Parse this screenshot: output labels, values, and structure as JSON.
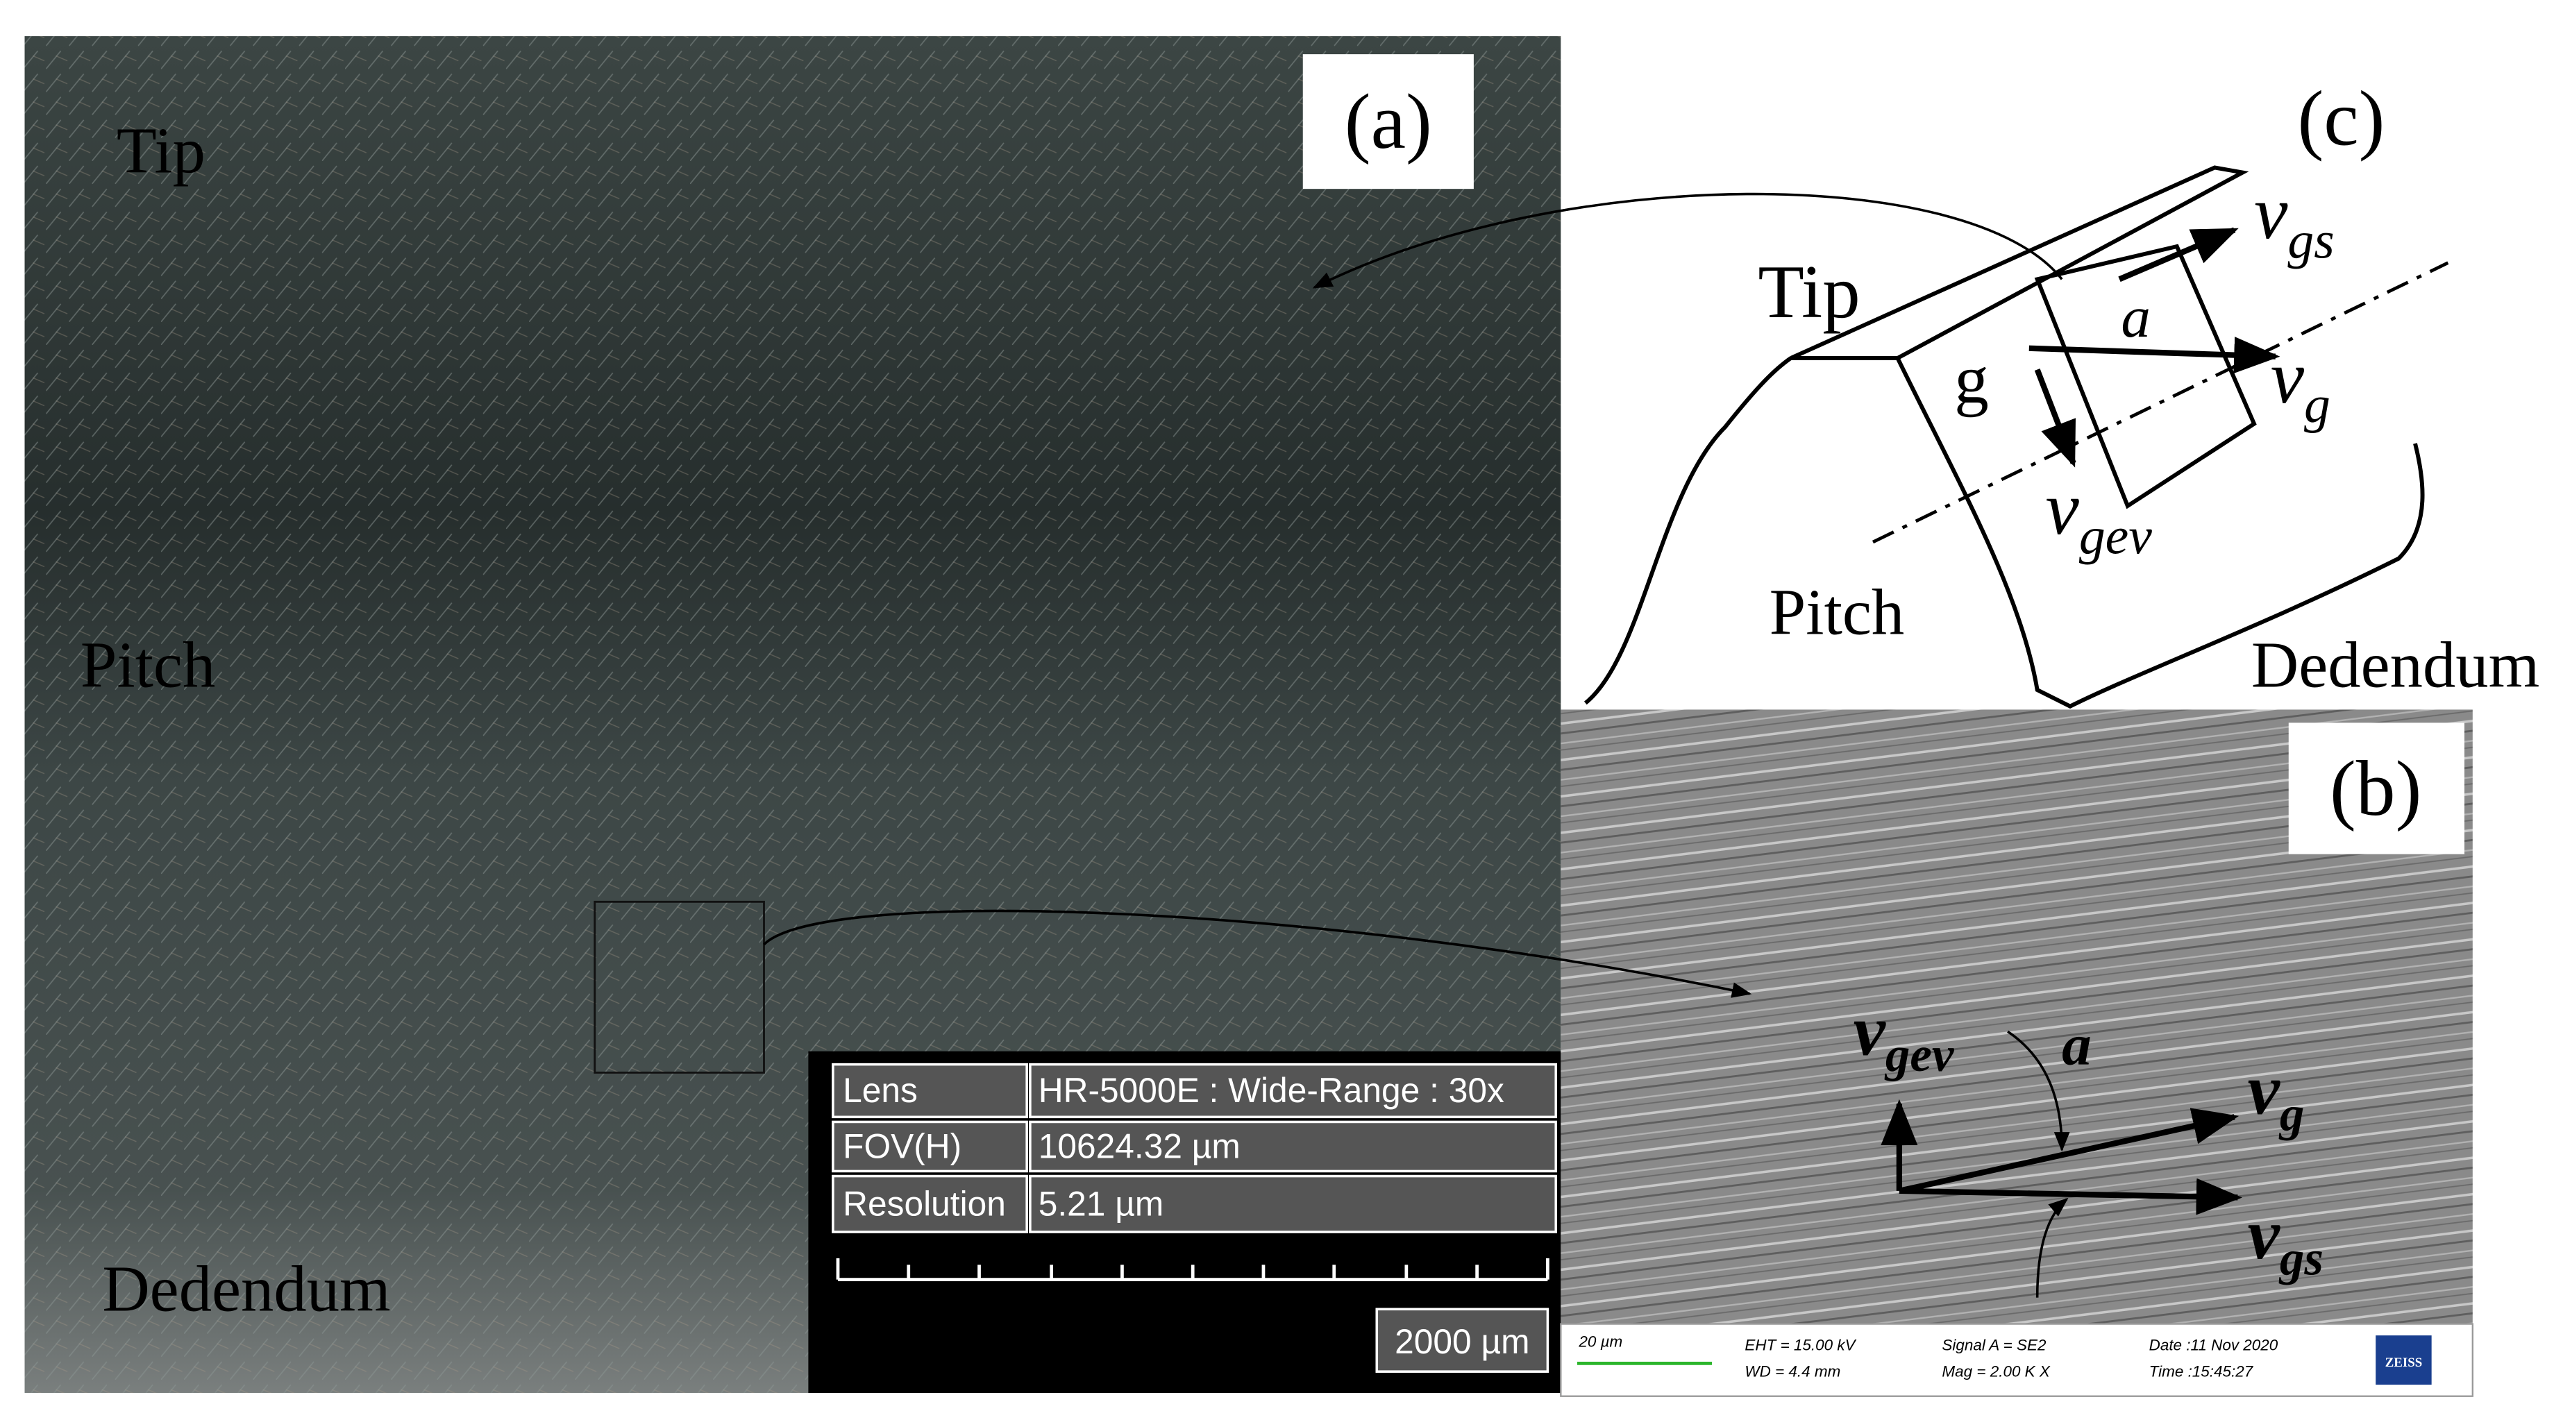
{
  "panel_a": {
    "label": "(a)",
    "regions": [
      "Tip",
      "Pitch",
      "Dedendum"
    ],
    "info_table": {
      "rows": [
        [
          "Lens",
          "HR-5000E : Wide-Range : 30x"
        ],
        [
          "FOV(H)",
          "10624.32 µm"
        ],
        [
          "Resolution",
          "5.21 µm"
        ]
      ]
    },
    "scale_bar": "2000 µm"
  },
  "panel_b": {
    "label": "(b)",
    "vectors": [
      {
        "symbol": "v",
        "subscript": "gev"
      },
      {
        "symbol": "v",
        "subscript": "g"
      },
      {
        "symbol": "v",
        "subscript": "gs"
      }
    ],
    "angle": "a",
    "footer": [
      "20 µm",
      "EHT = 15.00 kV",
      "WD = 4.4 mm",
      "Signal A = SE2",
      "Mag = 2.00 K X",
      "Date :11 Nov 2020",
      "Time :15:45:27",
      "ZEISS"
    ]
  },
  "panel_c": {
    "label": "(c)",
    "regions": [
      "Tip",
      "Pitch",
      "Dedendum"
    ],
    "direction": "g",
    "angle": "a",
    "vectors": [
      {
        "symbol": "v",
        "subscript": "gs"
      },
      {
        "symbol": "v",
        "subscript": "g"
      },
      {
        "symbol": "v",
        "subscript": "gev"
      }
    ]
  }
}
